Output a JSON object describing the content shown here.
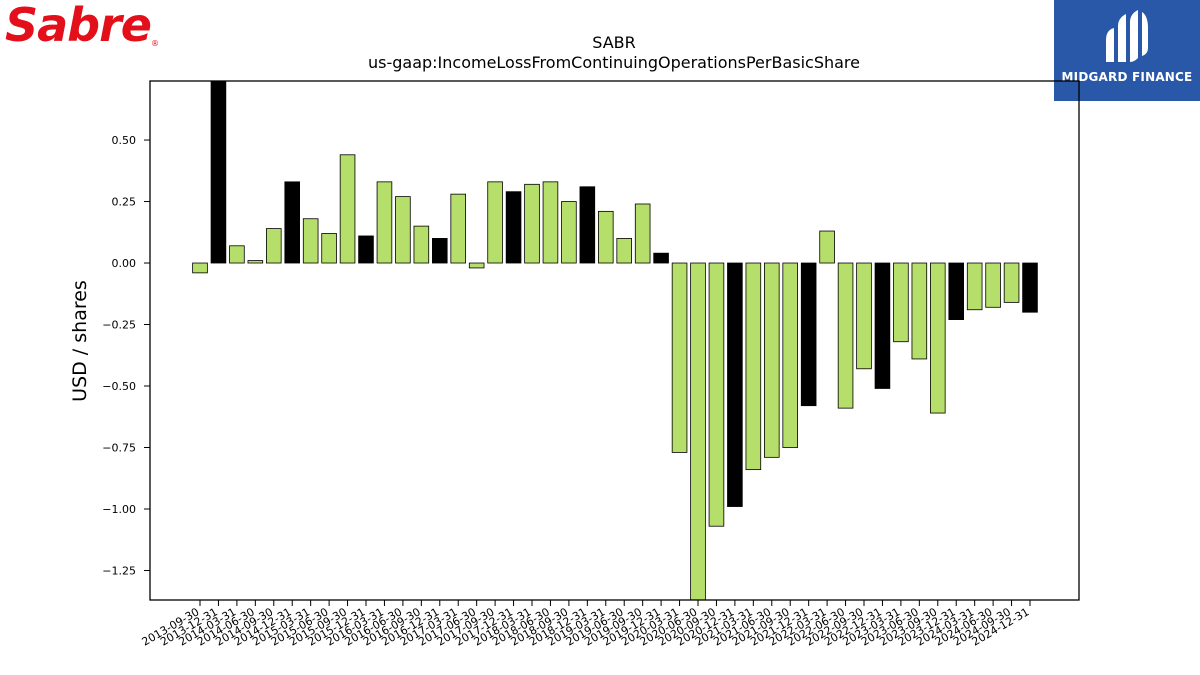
{
  "brand": {
    "company_logo_text": "Sabre",
    "partner_logo_text": "MIDGARD FINANCE",
    "sabre_red": "#e3101b",
    "midgard_blue": "#2a58a8"
  },
  "chart_data": {
    "type": "bar",
    "title": "SABR",
    "subtitle": "us-gaap:IncomeLossFromContinuingOperationsPerBasicShare",
    "xlabel": "",
    "ylabel": "USD / shares",
    "ylim": [
      -1.37,
      0.74
    ],
    "yticks": [
      0.5,
      0.25,
      0.0,
      -0.25,
      -0.5,
      -0.75,
      -1.0,
      -1.25
    ],
    "ytick_labels": [
      "0.50",
      "0.25",
      "0.00",
      "−0.25",
      "−0.50",
      "−0.75",
      "−1.00",
      "−1.25"
    ],
    "grid": false,
    "colors": {
      "quarter": "#b5de6a",
      "annual": "#000000",
      "edge": "#000000"
    },
    "categories": [
      "2013-09-30",
      "2013-12-31",
      "2014-03-31",
      "2014-06-30",
      "2014-09-30",
      "2014-12-31",
      "2015-03-31",
      "2015-06-30",
      "2015-09-30",
      "2015-12-31",
      "2016-03-31",
      "2016-06-30",
      "2016-09-30",
      "2016-12-31",
      "2017-03-31",
      "2017-06-30",
      "2017-09-30",
      "2017-12-31",
      "2018-03-31",
      "2018-06-30",
      "2018-09-30",
      "2018-12-31",
      "2019-03-31",
      "2019-06-30",
      "2019-09-30",
      "2019-12-31",
      "2020-03-31",
      "2020-06-30",
      "2020-09-30",
      "2020-12-31",
      "2021-03-31",
      "2021-06-30",
      "2021-09-30",
      "2021-12-31",
      "2022-03-31",
      "2022-06-30",
      "2022-09-30",
      "2022-12-31",
      "2023-03-31",
      "2023-06-30",
      "2023-09-30",
      "2023-12-31",
      "2024-03-31",
      "2024-06-30",
      "2024-09-30",
      "2024-12-31"
    ],
    "values": [
      -0.04,
      0.78,
      0.07,
      0.01,
      0.14,
      0.33,
      0.18,
      0.12,
      0.44,
      0.11,
      0.33,
      0.27,
      0.15,
      0.1,
      0.28,
      -0.02,
      0.33,
      0.29,
      0.32,
      0.33,
      0.25,
      0.31,
      0.21,
      0.1,
      0.24,
      0.04,
      -0.77,
      -1.4,
      -1.07,
      -0.99,
      -0.84,
      -0.79,
      -0.75,
      -0.58,
      0.13,
      -0.59,
      -0.43,
      -0.51,
      -0.32,
      -0.39,
      -0.61,
      -0.23,
      -0.19,
      -0.18,
      -0.16,
      -0.2
    ],
    "annual": [
      false,
      true,
      false,
      false,
      false,
      true,
      false,
      false,
      false,
      true,
      false,
      false,
      false,
      true,
      false,
      false,
      false,
      true,
      false,
      false,
      false,
      true,
      false,
      false,
      false,
      true,
      false,
      false,
      false,
      true,
      false,
      false,
      false,
      true,
      false,
      false,
      false,
      true,
      false,
      false,
      false,
      true,
      false,
      false,
      false,
      true
    ]
  }
}
